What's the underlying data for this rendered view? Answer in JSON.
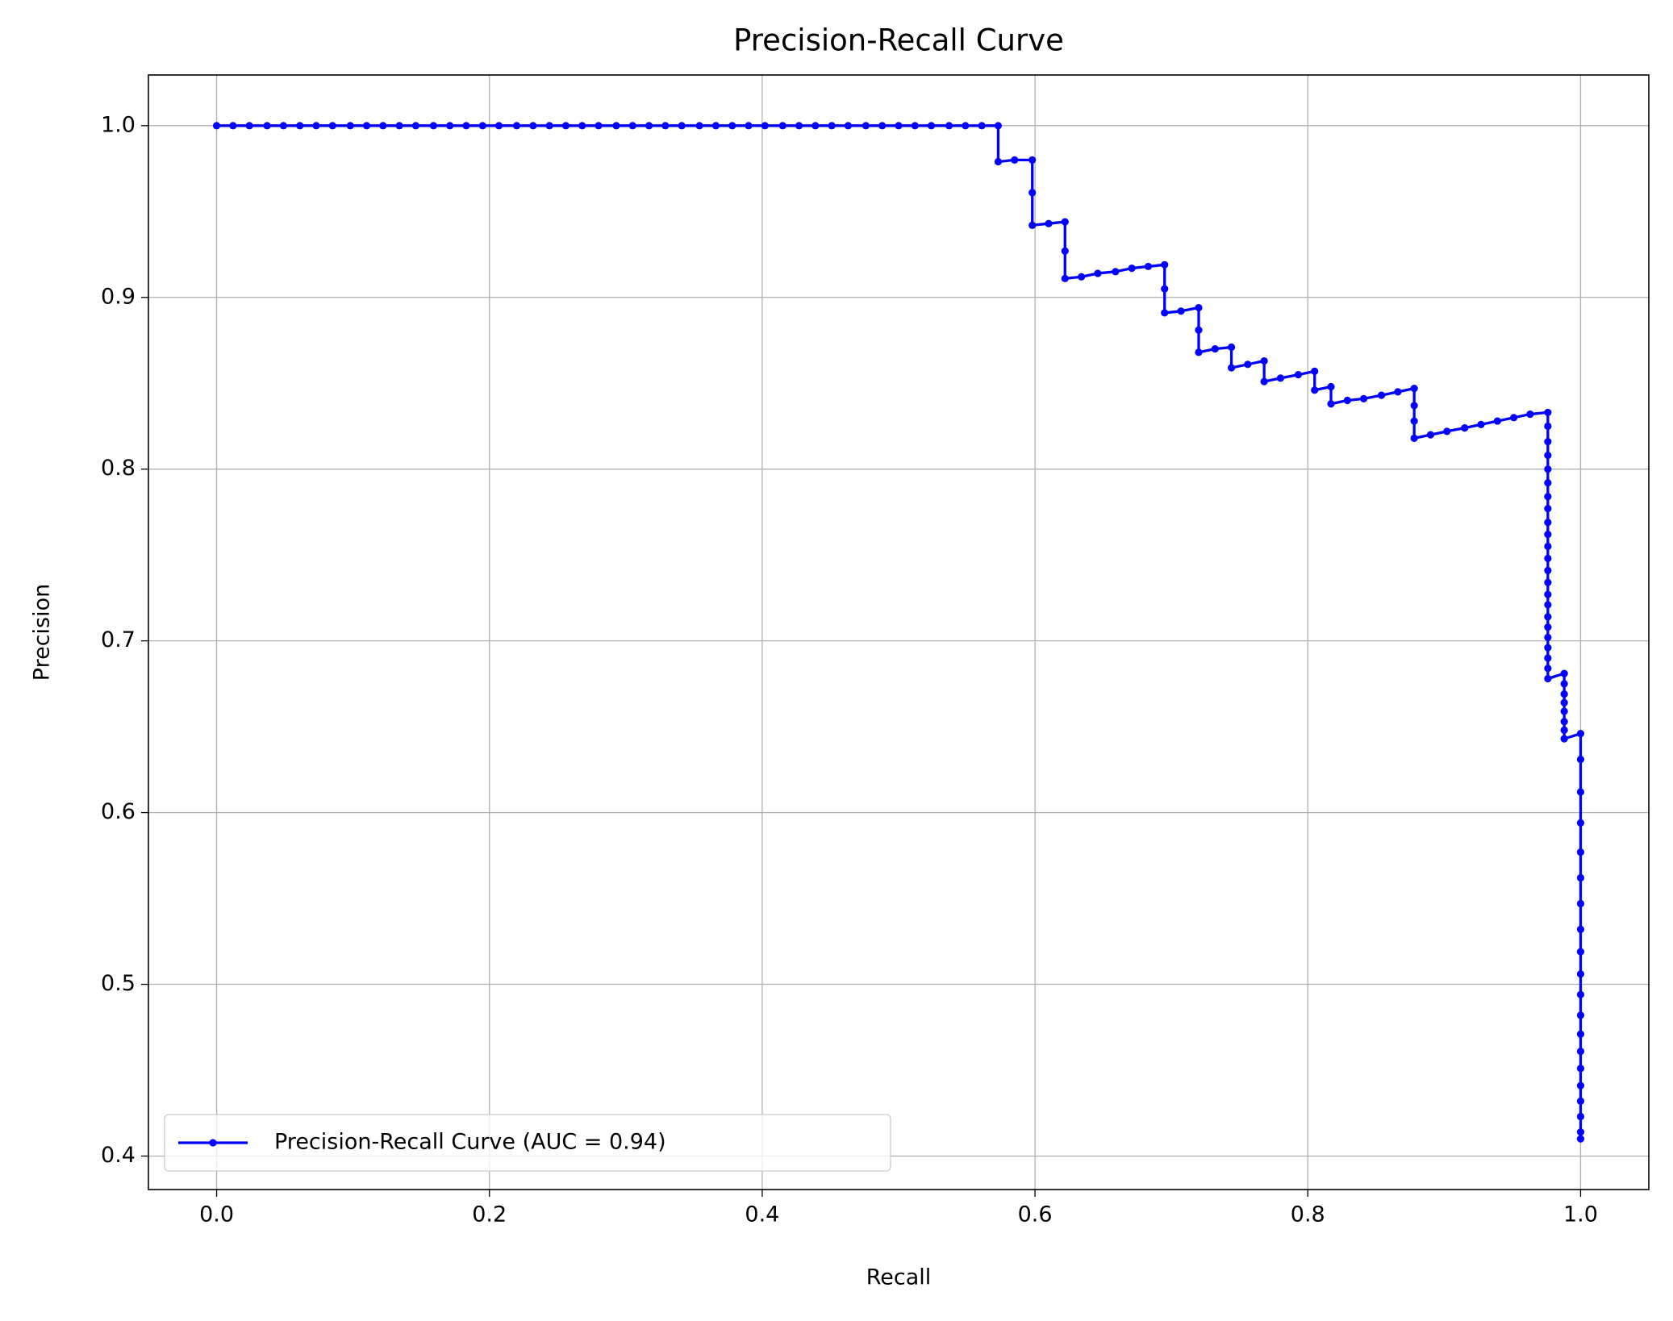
{
  "chart_data": {
    "type": "line",
    "title": "Precision-Recall Curve",
    "xlabel": "Recall",
    "ylabel": "Precision",
    "xlim": [
      -0.05,
      1.05
    ],
    "ylim": [
      0.3805,
      1.0295
    ],
    "xticks": [
      {
        "value": 0,
        "label": "0.0"
      },
      0.2,
      0.4,
      0.6,
      0.8,
      {
        "value": 1,
        "label": "1.0"
      }
    ],
    "yticks": [
      0.4,
      0.5,
      0.6,
      0.7,
      0.8,
      0.9,
      {
        "value": 1,
        "label": "1.0"
      }
    ],
    "grid": true,
    "legend": "lower left",
    "x": [
      0,
      0.012,
      0.024,
      0.037,
      0.049,
      0.061,
      0.073,
      0.085,
      0.098,
      0.11,
      0.122,
      0.134,
      0.146,
      0.159,
      0.171,
      0.183,
      0.195,
      0.207,
      0.22,
      0.232,
      0.244,
      0.256,
      0.268,
      0.28,
      0.293,
      0.305,
      0.317,
      0.329,
      0.341,
      0.354,
      0.366,
      0.378,
      0.39,
      0.402,
      0.415,
      0.427,
      0.439,
      0.451,
      0.463,
      0.476,
      0.488,
      0.5,
      0.512,
      0.524,
      0.537,
      0.549,
      0.561,
      0.573,
      0.573,
      0.585,
      0.598,
      0.598,
      0.598,
      0.61,
      0.622,
      0.622,
      0.622,
      0.634,
      0.646,
      0.659,
      0.671,
      0.683,
      0.695,
      0.695,
      0.695,
      0.707,
      0.72,
      0.72,
      0.72,
      0.732,
      0.744,
      0.744,
      0.756,
      0.768,
      0.768,
      0.78,
      0.793,
      0.805,
      0.805,
      0.817,
      0.817,
      0.829,
      0.841,
      0.854,
      0.866,
      0.878,
      0.878,
      0.878,
      0.878,
      0.89,
      0.902,
      0.915,
      0.927,
      0.939,
      0.951,
      0.963,
      0.976,
      0.976,
      0.976,
      0.976,
      0.976,
      0.976,
      0.976,
      0.976,
      0.976,
      0.976,
      0.976,
      0.976,
      0.976,
      0.976,
      0.976,
      0.976,
      0.976,
      0.976,
      0.976,
      0.976,
      0.976,
      0.976,
      0.976,
      0.988,
      0.988,
      0.988,
      0.988,
      0.988,
      0.988,
      0.988,
      0.988,
      1,
      1,
      1,
      1,
      1,
      1,
      1,
      1,
      1,
      1,
      1,
      1,
      1,
      1,
      1,
      1,
      1,
      1,
      1,
      1
    ],
    "series": [
      {
        "name": "Precision-Recall Curve (AUC = 0.94)",
        "color": "#0000ff",
        "values": [
          1,
          1,
          1,
          1,
          1,
          1,
          1,
          1,
          1,
          1,
          1,
          1,
          1,
          1,
          1,
          1,
          1,
          1,
          1,
          1,
          1,
          1,
          1,
          1,
          1,
          1,
          1,
          1,
          1,
          1,
          1,
          1,
          1,
          1,
          1,
          1,
          1,
          1,
          1,
          1,
          1,
          1,
          1,
          1,
          1,
          1,
          1,
          1,
          0.979,
          0.98,
          0.98,
          0.961,
          0.942,
          0.943,
          0.944,
          0.927,
          0.911,
          0.912,
          0.914,
          0.915,
          0.917,
          0.918,
          0.919,
          0.905,
          0.891,
          0.892,
          0.894,
          0.881,
          0.868,
          0.87,
          0.871,
          0.859,
          0.861,
          0.863,
          0.851,
          0.853,
          0.855,
          0.857,
          0.846,
          0.848,
          0.838,
          0.84,
          0.841,
          0.843,
          0.845,
          0.847,
          0.837,
          0.828,
          0.818,
          0.82,
          0.822,
          0.824,
          0.826,
          0.828,
          0.83,
          0.832,
          0.833,
          0.825,
          0.816,
          0.808,
          0.8,
          0.792,
          0.784,
          0.777,
          0.769,
          0.762,
          0.755,
          0.748,
          0.741,
          0.734,
          0.727,
          0.721,
          0.714,
          0.708,
          0.702,
          0.696,
          0.69,
          0.684,
          0.678,
          0.681,
          0.675,
          0.669,
          0.664,
          0.659,
          0.653,
          0.648,
          0.643,
          0.646,
          0.631,
          0.612,
          0.594,
          0.577,
          0.562,
          0.547,
          0.532,
          0.519,
          0.506,
          0.494,
          0.482,
          0.471,
          0.461,
          0.451,
          0.441,
          0.432,
          0.423,
          0.414,
          0.41
        ]
      }
    ]
  }
}
